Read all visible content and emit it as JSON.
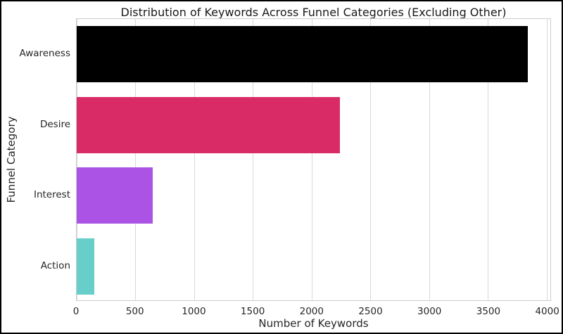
{
  "figure": {
    "border_color": "#000000",
    "background": "#ffffff"
  },
  "chart_data": {
    "type": "bar",
    "orientation": "horizontal",
    "title": "Distribution of Keywords Across Funnel Categories (Excluding Other)",
    "xlabel": "Number of Keywords",
    "ylabel": "Funnel Category",
    "categories": [
      "Awareness",
      "Desire",
      "Interest",
      "Action"
    ],
    "values": [
      3840,
      2240,
      650,
      150
    ],
    "bar_colors": [
      "#000000",
      "#d92b66",
      "#ab53e4",
      "#68cec9"
    ],
    "xticks": [
      0,
      500,
      1000,
      1500,
      2000,
      2500,
      3000,
      3500,
      4000
    ],
    "xlim": [
      0,
      4032
    ],
    "bar_fraction": 0.8,
    "grid": true,
    "legend_position": "none",
    "style": {
      "grid_color": "#d9d9d9",
      "spine_color": "#cccccc",
      "text_color": "#262626",
      "title_color": "#1a1a1a"
    }
  }
}
